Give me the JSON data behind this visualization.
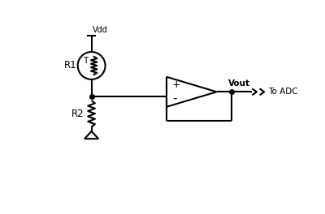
{
  "bg_color": "#ffffff",
  "line_color": "#000000",
  "line_width": 1.5,
  "text_color": "#000000",
  "vdd_label": "Vdd",
  "r1_label": "R1",
  "r2_label": "R2",
  "vout_label": "Vout",
  "adc_label": "To ADC",
  "plus_label": "+",
  "minus_label": "-",
  "thermistor_label": "T",
  "figsize": [
    4.0,
    2.64
  ],
  "dpi": 100,
  "xlim": [
    0,
    10
  ],
  "ylim": [
    0,
    6.6
  ]
}
